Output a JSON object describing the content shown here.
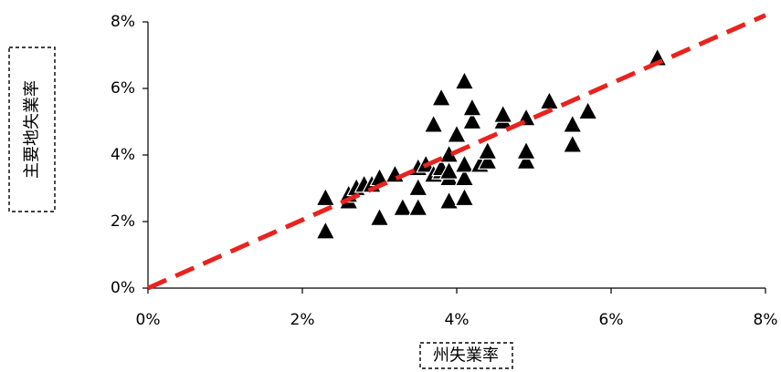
{
  "chart_data": {
    "type": "scatter",
    "xlabel": "州失業率",
    "ylabel": "主要地失業率",
    "xlim": [
      0,
      0.08
    ],
    "ylim": [
      0,
      0.08
    ],
    "x_ticks": [
      "0%",
      "2%",
      "4%",
      "6%",
      "8%"
    ],
    "y_ticks": [
      "0%",
      "2%",
      "4%",
      "6%",
      "8%"
    ],
    "grid": false,
    "legend": "none",
    "marker": "triangle",
    "marker_color": "#000000",
    "reference_line": {
      "style": "dashed",
      "color": "#e8231f",
      "from": [
        0,
        0
      ],
      "to": [
        0.08,
        0.082
      ]
    },
    "points": [
      {
        "x": 0.023,
        "y": 0.017
      },
      {
        "x": 0.023,
        "y": 0.027
      },
      {
        "x": 0.026,
        "y": 0.026
      },
      {
        "x": 0.026,
        "y": 0.028
      },
      {
        "x": 0.027,
        "y": 0.03
      },
      {
        "x": 0.028,
        "y": 0.031
      },
      {
        "x": 0.029,
        "y": 0.031
      },
      {
        "x": 0.03,
        "y": 0.021
      },
      {
        "x": 0.03,
        "y": 0.033
      },
      {
        "x": 0.032,
        "y": 0.034
      },
      {
        "x": 0.033,
        "y": 0.024
      },
      {
        "x": 0.035,
        "y": 0.024
      },
      {
        "x": 0.035,
        "y": 0.03
      },
      {
        "x": 0.035,
        "y": 0.036
      },
      {
        "x": 0.036,
        "y": 0.037
      },
      {
        "x": 0.037,
        "y": 0.034
      },
      {
        "x": 0.038,
        "y": 0.035
      },
      {
        "x": 0.038,
        "y": 0.036
      },
      {
        "x": 0.037,
        "y": 0.049
      },
      {
        "x": 0.038,
        "y": 0.057
      },
      {
        "x": 0.039,
        "y": 0.026
      },
      {
        "x": 0.039,
        "y": 0.033
      },
      {
        "x": 0.039,
        "y": 0.035
      },
      {
        "x": 0.039,
        "y": 0.04
      },
      {
        "x": 0.04,
        "y": 0.046
      },
      {
        "x": 0.041,
        "y": 0.027
      },
      {
        "x": 0.041,
        "y": 0.033
      },
      {
        "x": 0.041,
        "y": 0.037
      },
      {
        "x": 0.041,
        "y": 0.062
      },
      {
        "x": 0.042,
        "y": 0.05
      },
      {
        "x": 0.042,
        "y": 0.054
      },
      {
        "x": 0.043,
        "y": 0.037
      },
      {
        "x": 0.044,
        "y": 0.038
      },
      {
        "x": 0.044,
        "y": 0.041
      },
      {
        "x": 0.046,
        "y": 0.05
      },
      {
        "x": 0.046,
        "y": 0.052
      },
      {
        "x": 0.049,
        "y": 0.038
      },
      {
        "x": 0.049,
        "y": 0.041
      },
      {
        "x": 0.049,
        "y": 0.051
      },
      {
        "x": 0.052,
        "y": 0.056
      },
      {
        "x": 0.055,
        "y": 0.043
      },
      {
        "x": 0.055,
        "y": 0.049
      },
      {
        "x": 0.057,
        "y": 0.053
      },
      {
        "x": 0.066,
        "y": 0.069
      }
    ]
  }
}
